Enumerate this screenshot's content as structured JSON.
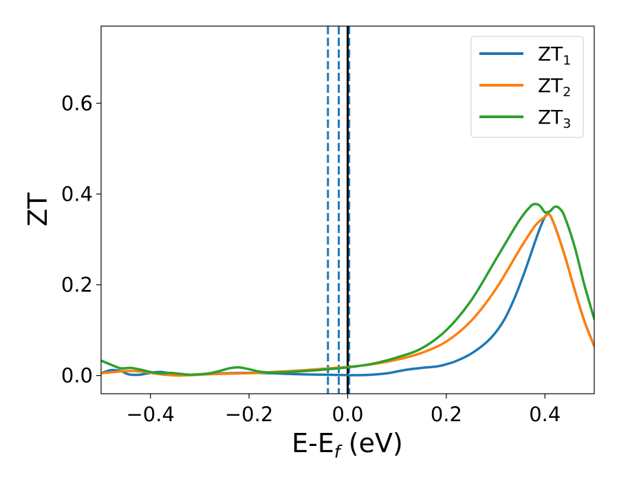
{
  "chart_data": {
    "type": "line",
    "xlabel": {
      "main": "E-E",
      "sub": "f",
      "suffix": " (eV)"
    },
    "ylabel": "ZT",
    "xlim": [
      -0.5,
      0.5
    ],
    "ylim": [
      -0.04,
      0.77
    ],
    "xticks": [
      -0.4,
      -0.2,
      0.0,
      0.2,
      0.4
    ],
    "xtick_labels": [
      "−0.4",
      "−0.2",
      "0.0",
      "0.2",
      "0.4"
    ],
    "yticks": [
      0.0,
      0.2,
      0.4,
      0.6
    ],
    "ytick_labels": [
      "0.0",
      "0.2",
      "0.4",
      "0.6"
    ],
    "grid": false,
    "legend_position": "top-right",
    "series": [
      {
        "name": "ZT",
        "name_sub": "1",
        "color": "#1f77b4",
        "x": [
          -0.5,
          -0.48,
          -0.46,
          -0.45,
          -0.44,
          -0.42,
          -0.4,
          -0.38,
          -0.36,
          -0.34,
          -0.32,
          -0.3,
          -0.28,
          -0.25,
          -0.2,
          -0.15,
          -0.1,
          -0.05,
          0.0,
          0.03,
          0.05,
          0.08,
          0.1,
          0.12,
          0.15,
          0.18,
          0.2,
          0.22,
          0.25,
          0.28,
          0.3,
          0.32,
          0.34,
          0.36,
          0.38,
          0.39,
          0.4,
          0.405,
          0.41,
          0.42,
          0.44,
          0.46,
          0.48,
          0.5
        ],
        "y": [
          0.005,
          0.012,
          0.01,
          0.005,
          0.002,
          0.002,
          0.006,
          0.008,
          0.005,
          0.002,
          0.001,
          0.002,
          0.004,
          0.005,
          0.006,
          0.005,
          0.003,
          0.002,
          0.001,
          0.001,
          0.002,
          0.005,
          0.009,
          0.013,
          0.017,
          0.02,
          0.025,
          0.032,
          0.048,
          0.072,
          0.095,
          0.128,
          0.175,
          0.232,
          0.295,
          0.325,
          0.35,
          0.355,
          0.354,
          0.33,
          0.265,
          0.19,
          0.12,
          0.065
        ]
      },
      {
        "name": "ZT",
        "name_sub": "2",
        "color": "#ff7f0e",
        "x": [
          -0.5,
          -0.45,
          -0.42,
          -0.4,
          -0.38,
          -0.36,
          -0.34,
          -0.32,
          -0.3,
          -0.28,
          -0.25,
          -0.2,
          -0.18,
          -0.15,
          -0.1,
          -0.05,
          0.0,
          0.05,
          0.1,
          0.15,
          0.2,
          0.25,
          0.3,
          0.35,
          0.38,
          0.4,
          0.405,
          0.41,
          0.42,
          0.44,
          0.46,
          0.48,
          0.5
        ],
        "y": [
          0.005,
          0.01,
          0.009,
          0.006,
          0.003,
          0.001,
          0.0,
          0.001,
          0.002,
          0.003,
          0.004,
          0.005,
          0.006,
          0.008,
          0.011,
          0.015,
          0.019,
          0.025,
          0.035,
          0.05,
          0.075,
          0.12,
          0.19,
          0.28,
          0.33,
          0.35,
          0.355,
          0.354,
          0.33,
          0.265,
          0.19,
          0.12,
          0.065
        ]
      },
      {
        "name": "ZT",
        "name_sub": "3",
        "color": "#2ca02c",
        "x": [
          -0.5,
          -0.48,
          -0.46,
          -0.44,
          -0.42,
          -0.4,
          -0.38,
          -0.36,
          -0.34,
          -0.32,
          -0.3,
          -0.28,
          -0.26,
          -0.24,
          -0.22,
          -0.2,
          -0.18,
          -0.16,
          -0.14,
          -0.1,
          -0.05,
          0.0,
          0.05,
          0.1,
          0.15,
          0.2,
          0.25,
          0.3,
          0.33,
          0.35,
          0.37,
          0.38,
          0.39,
          0.4,
          0.41,
          0.42,
          0.43,
          0.44,
          0.46,
          0.48,
          0.5
        ],
        "y": [
          0.033,
          0.024,
          0.016,
          0.017,
          0.013,
          0.008,
          0.005,
          0.006,
          0.004,
          0.002,
          0.003,
          0.005,
          0.01,
          0.016,
          0.018,
          0.014,
          0.009,
          0.007,
          0.007,
          0.009,
          0.013,
          0.018,
          0.026,
          0.04,
          0.06,
          0.1,
          0.165,
          0.255,
          0.31,
          0.345,
          0.372,
          0.378,
          0.374,
          0.36,
          0.362,
          0.372,
          0.368,
          0.35,
          0.285,
          0.2,
          0.125
        ]
      }
    ],
    "vlines": [
      {
        "x": -0.04,
        "color": "#1f77b4",
        "style": "dashed"
      },
      {
        "x": -0.018,
        "color": "#1f77b4",
        "style": "dashed"
      },
      {
        "x": 0.003,
        "color": "#1f77b4",
        "style": "dashed"
      },
      {
        "x": 0.0,
        "color": "#000000",
        "style": "solid"
      }
    ]
  }
}
